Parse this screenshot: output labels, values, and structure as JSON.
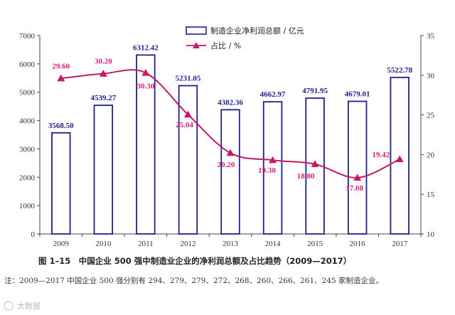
{
  "chart_data": {
    "type": "bar",
    "categories": [
      "2009",
      "2010",
      "2011",
      "2012",
      "2013",
      "2014",
      "2015",
      "2016",
      "2017"
    ],
    "series": [
      {
        "name": "制造企业净利润总额 / 亿元",
        "type": "bar",
        "axis": "left",
        "values": [
          3568.5,
          4539.27,
          6312.42,
          5231.05,
          4382.36,
          4662.97,
          4791.95,
          4679.01,
          5522.78
        ],
        "labels": [
          "3568.50",
          "4539.27",
          "6312.42",
          "5231.05",
          "4382.36",
          "4662.97",
          "4791.95",
          "4679.01",
          "5522.78"
        ]
      },
      {
        "name": "占比 / %",
        "type": "line",
        "axis": "right",
        "values": [
          29.6,
          30.2,
          30.3,
          25.04,
          20.2,
          19.3,
          18.8,
          17.08,
          19.42
        ],
        "labels": [
          "29.60",
          "30.20",
          "30.30",
          "25.04",
          "20.20",
          "19.30",
          "18.80",
          "17.08",
          "19.42"
        ]
      }
    ],
    "ylim_left": [
      0,
      7000
    ],
    "yticks_left": [
      "0",
      "1000",
      "2000",
      "3000",
      "4000",
      "5000",
      "6000",
      "7000"
    ],
    "ylim_right": [
      10,
      35
    ],
    "yticks_right": [
      "10",
      "15",
      "20",
      "25",
      "30",
      "35"
    ],
    "legend_position": "top-center",
    "grid": false,
    "colors": {
      "bar_edge": "#1f1f8a",
      "bar_fill": "#ffffff",
      "line": "#c8166b",
      "line_label": "#d61f74"
    }
  },
  "caption": "图 1–15　中国企业 500 强中制造业企业的净利润总额及占比趋势（2009—2017）",
  "note": "注：2009—2017 中国企业 500 强分别有 294、279、279、272、268、260、266、261、245 家制造企业。",
  "watermark": "大数据"
}
